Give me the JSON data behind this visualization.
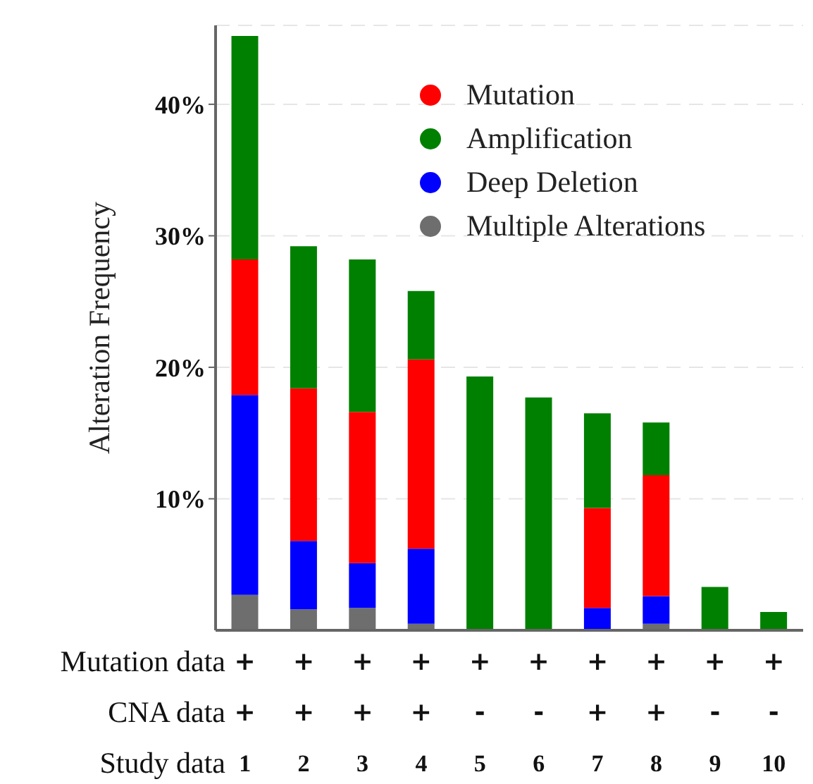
{
  "chart_data": {
    "type": "bar",
    "stacked": true,
    "ylabel": "Alteration Frequency",
    "xlabel": "Study data",
    "categories": [
      "1",
      "2",
      "3",
      "4",
      "5",
      "6",
      "7",
      "8",
      "9",
      "10"
    ],
    "series": [
      {
        "name": "Multiple Alterations",
        "color": "#6e6e6e",
        "values": [
          2.7,
          1.6,
          1.7,
          0.5,
          0,
          0,
          0,
          0.5,
          0,
          0
        ]
      },
      {
        "name": "Deep Deletion",
        "color": "#0000ff",
        "values": [
          15.2,
          5.2,
          3.4,
          5.7,
          0,
          0,
          1.7,
          2.1,
          0,
          0
        ]
      },
      {
        "name": "Mutation",
        "color": "#ff0000",
        "values": [
          10.3,
          11.6,
          11.5,
          14.4,
          0,
          0,
          7.6,
          9.2,
          0,
          0
        ]
      },
      {
        "name": "Amplification",
        "color": "#008000",
        "values": [
          17,
          10.8,
          11.6,
          5.2,
          19.3,
          17.7,
          7.2,
          4,
          3.3,
          1.4
        ]
      }
    ],
    "ylim": [
      0,
      46
    ],
    "yticks": [
      {
        "value": 10,
        "label": "10%"
      },
      {
        "value": 20,
        "label": "20%"
      },
      {
        "value": 30,
        "label": "30%"
      },
      {
        "value": 40,
        "label": "40%"
      }
    ],
    "grid": "y",
    "legend": "top right",
    "marker": "circle",
    "annotations": [
      "Mutation data",
      "+",
      "+",
      "+",
      "+",
      "+",
      "+",
      "+",
      "+",
      "+",
      "+",
      "CNA data",
      "+",
      "+",
      "+",
      "+",
      "-",
      "-",
      "+",
      "+",
      "-",
      "-"
    ]
  }
}
